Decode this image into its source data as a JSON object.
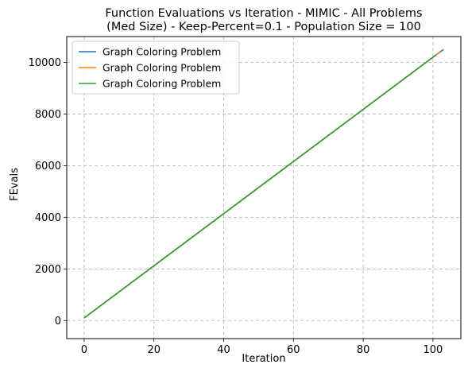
{
  "chart_data": {
    "type": "line",
    "title": "Function Evaluations vs Iteration - MIMIC - All Problems",
    "subtitle": "(Med Size) - Keep-Percent=0.1 - Population Size = 100",
    "xlabel": "Iteration",
    "ylabel": "FEvals",
    "xlim": [
      -5,
      108
    ],
    "ylim": [
      -700,
      11000
    ],
    "xticks": [
      0,
      20,
      40,
      60,
      80,
      100
    ],
    "xtick_labels": [
      "0",
      "20",
      "40",
      "60",
      "80",
      "100"
    ],
    "yticks": [
      0,
      2000,
      4000,
      6000,
      8000,
      10000
    ],
    "ytick_labels": [
      "0",
      "2000",
      "4000",
      "6000",
      "8000",
      "10000"
    ],
    "grid": true,
    "grid_style": "dashed",
    "legend_position": "top-left",
    "series": [
      {
        "name": "Graph Coloring Problem",
        "color": "#1f77b4",
        "x": [
          0,
          103
        ],
        "y": [
          101,
          10501
        ]
      },
      {
        "name": "Graph Coloring Problem",
        "color": "#ff7f0e",
        "x": [
          0,
          102
        ],
        "y": [
          101,
          10401
        ]
      },
      {
        "name": "Graph Coloring Problem",
        "color": "#2ca02c",
        "x": [
          0,
          101
        ],
        "y": [
          101,
          10301
        ]
      }
    ]
  }
}
